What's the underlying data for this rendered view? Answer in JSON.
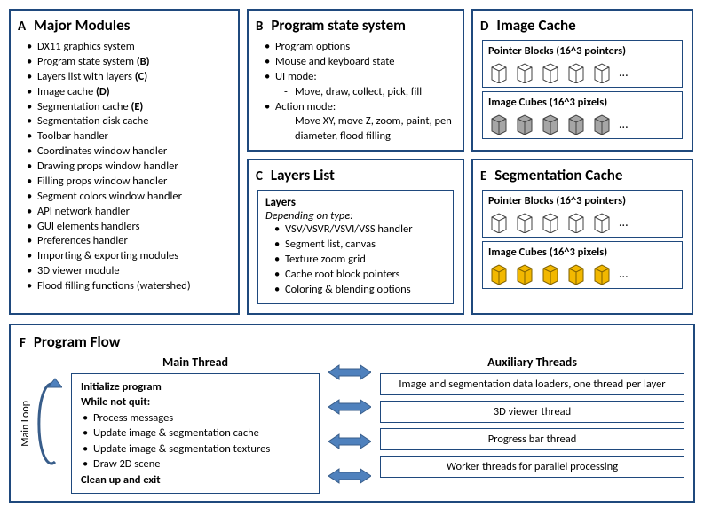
{
  "colors": {
    "border": "#1f497d",
    "arrow_fill": "#4f81bd",
    "arrow_stroke": "#385d8a",
    "cube_white_fill": "#ffffff",
    "cube_white_stroke": "#404040",
    "cube_gray_fill": "#a6a6a6",
    "cube_gray_stroke": "#404040",
    "cube_yellow_fill": "#f2b800",
    "cube_yellow_stroke": "#7f6000"
  },
  "boxA": {
    "label": "A",
    "title": "Major Modules",
    "items": [
      "DX11 graphics system",
      "Program state system (B)",
      "Layers list with layers (C)",
      "Image cache (D)",
      "Segmentation cache (E)",
      "Segmentation disk cache",
      "Toolbar handler",
      "Coordinates window handler",
      "Drawing props window handler",
      "Filling props window handler",
      "Segment colors window handler",
      "API network handler",
      "GUI elements handlers",
      "Preferences handler",
      "Importing & exporting modules",
      "3D viewer module",
      "Flood filling functions (watershed)"
    ]
  },
  "boxB": {
    "label": "B",
    "title": "Program state system",
    "items": [
      "Program options",
      "Mouse and keyboard state"
    ],
    "ui_mode_label": "UI mode:",
    "ui_mode_sub": "Move, draw, collect, pick, fill",
    "action_mode_label": "Action mode:",
    "action_mode_sub": "Move XY, move Z, zoom, paint, pen diameter, flood filling"
  },
  "boxC": {
    "label": "C",
    "title": "Layers List",
    "heading": "Layers",
    "subheading": "Depending on type:",
    "items": [
      "VSV/VSVR/VSVI/VSS handler",
      "Segment list, canvas",
      "Texture zoom grid",
      "Cache root block pointers",
      "Coloring & blending options"
    ]
  },
  "boxD": {
    "label": "D",
    "title": "Image Cache",
    "section1_title": "Pointer Blocks (16^3 pointers)",
    "section2_title": "Image Cubes (16^3 pixels)",
    "ellipsis": "..."
  },
  "boxE": {
    "label": "E",
    "title": "Segmentation Cache",
    "section1_title": "Pointer Blocks (16^3 pointers)",
    "section2_title": "Image Cubes (16^3 pixels)",
    "ellipsis": "..."
  },
  "boxF": {
    "label": "F",
    "title": "Program Flow",
    "main_thread_heading": "Main Thread",
    "aux_heading": "Auxiliary Threads",
    "loop_label": "Main Loop",
    "main_lines": {
      "l1": "Initialize program",
      "l2": "While not quit:",
      "l3": "Process messages",
      "l4": "Update image & segmentation cache",
      "l5": "Update image & segmentation textures",
      "l6": "Draw 2D scene",
      "l7": "Clean up and exit"
    },
    "aux_boxes": [
      "Image and segmentation data loaders, one thread per layer",
      "3D viewer thread",
      "Progress bar thread",
      "Worker threads for parallel processing"
    ]
  }
}
